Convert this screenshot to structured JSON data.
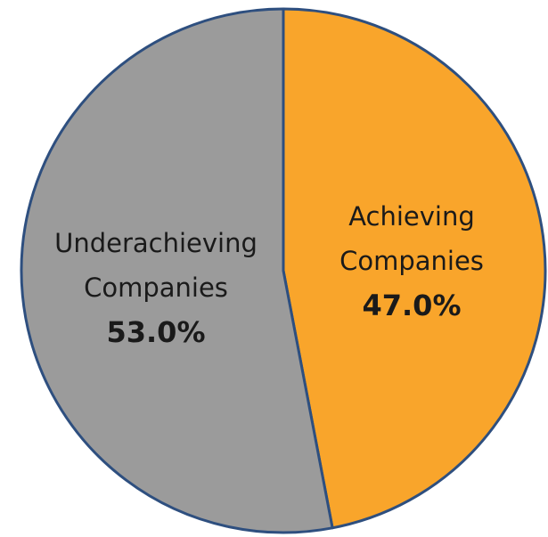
{
  "chart_data": {
    "type": "pie",
    "categories": [
      "Achieving Companies",
      "Underachieving Companies"
    ],
    "values": [
      47.0,
      53.0
    ],
    "value_labels": [
      "47.0%",
      "53.0%"
    ],
    "colors": [
      "#f9a52b",
      "#9b9b9b"
    ],
    "edge_color": "#2e4f7f"
  }
}
